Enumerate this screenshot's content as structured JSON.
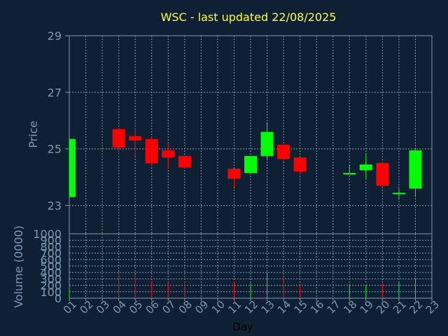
{
  "chart_data": [
    {
      "type": "candlestick",
      "title": "WSC - last updated 22/08/2025",
      "ylabel": "Price",
      "ylim": [
        22,
        29
      ],
      "yticks": [
        "23",
        "25",
        "27",
        "29"
      ],
      "x_ticks": [
        "01",
        "02",
        "03",
        "04",
        "05",
        "06",
        "07",
        "08",
        "09",
        "10",
        "11",
        "12",
        "13",
        "14",
        "15",
        "16",
        "17",
        "18",
        "19",
        "20",
        "21",
        "22",
        "23"
      ],
      "xlabel": "Day",
      "grid": true,
      "up_color": "#00ff00",
      "down_color": "#ff0000",
      "candles": [
        {
          "day": 1,
          "open": 23.3,
          "high": 25.35,
          "low": 23.3,
          "close": 25.35
        },
        {
          "day": 4,
          "open": 25.7,
          "high": 25.75,
          "low": 24.8,
          "close": 25.05
        },
        {
          "day": 5,
          "open": 25.45,
          "high": 25.75,
          "low": 24.75,
          "close": 25.3
        },
        {
          "day": 6,
          "open": 25.35,
          "high": 25.4,
          "low": 24.4,
          "close": 24.5
        },
        {
          "day": 7,
          "open": 24.95,
          "high": 25.2,
          "low": 24.3,
          "close": 24.7
        },
        {
          "day": 8,
          "open": 24.75,
          "high": 24.75,
          "low": 24.3,
          "close": 24.35
        },
        {
          "day": 11,
          "open": 24.3,
          "high": 24.3,
          "low": 23.65,
          "close": 23.95
        },
        {
          "day": 12,
          "open": 24.15,
          "high": 24.75,
          "low": 24.15,
          "close": 24.75
        },
        {
          "day": 13,
          "open": 24.75,
          "high": 25.95,
          "low": 24.6,
          "close": 25.6
        },
        {
          "day": 14,
          "open": 25.15,
          "high": 25.15,
          "low": 24.55,
          "close": 24.65
        },
        {
          "day": 15,
          "open": 24.7,
          "high": 24.7,
          "low": 24.1,
          "close": 24.2
        },
        {
          "day": 18,
          "open": 24.1,
          "high": 24.45,
          "low": 24.1,
          "close": 24.15
        },
        {
          "day": 19,
          "open": 24.25,
          "high": 24.85,
          "low": 23.95,
          "close": 24.45
        },
        {
          "day": 20,
          "open": 24.5,
          "high": 24.55,
          "low": 23.65,
          "close": 23.7
        },
        {
          "day": 21,
          "open": 23.4,
          "high": 23.6,
          "low": 23.2,
          "close": 23.45
        },
        {
          "day": 22,
          "open": 23.6,
          "high": 25.0,
          "low": 23.3,
          "close": 24.95
        }
      ]
    },
    {
      "type": "bar",
      "ylabel": "Volume (0000)",
      "ylim": [
        0,
        1000
      ],
      "yticks": [
        "0",
        "100",
        "200",
        "300",
        "400",
        "500",
        "600",
        "700",
        "800",
        "900",
        "1000"
      ],
      "grid": true,
      "bars": [
        {
          "day": 1,
          "value": 150,
          "direction": "up"
        },
        {
          "day": 4,
          "value": 410,
          "direction": "down"
        },
        {
          "day": 5,
          "value": 370,
          "direction": "down"
        },
        {
          "day": 6,
          "value": 270,
          "direction": "down"
        },
        {
          "day": 7,
          "value": 250,
          "direction": "down"
        },
        {
          "day": 8,
          "value": 250,
          "direction": "down"
        },
        {
          "day": 11,
          "value": 260,
          "direction": "down"
        },
        {
          "day": 12,
          "value": 230,
          "direction": "up"
        },
        {
          "day": 13,
          "value": 400,
          "direction": "up"
        },
        {
          "day": 14,
          "value": 330,
          "direction": "down"
        },
        {
          "day": 15,
          "value": 200,
          "direction": "down"
        },
        {
          "day": 18,
          "value": 220,
          "direction": "up"
        },
        {
          "day": 19,
          "value": 200,
          "direction": "up"
        },
        {
          "day": 20,
          "value": 230,
          "direction": "down"
        },
        {
          "day": 21,
          "value": 240,
          "direction": "up"
        },
        {
          "day": 22,
          "value": 310,
          "direction": "up"
        }
      ]
    }
  ]
}
